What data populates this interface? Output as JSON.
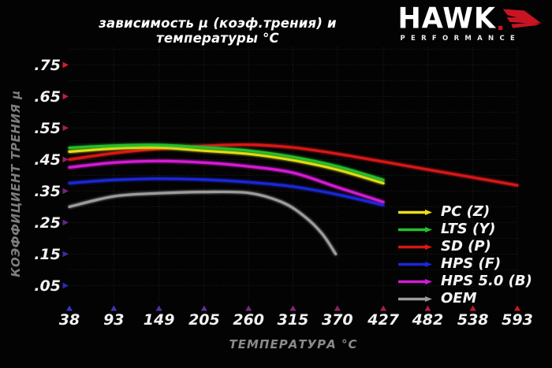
{
  "header": {
    "title": "зависимость μ (коэф.трения) и температуры °C",
    "logo": {
      "brand": "HAWK",
      "performance": "PERFORMANCE",
      "brand_color": "#ffffff",
      "wing_color": "#c81423"
    }
  },
  "chart_data": {
    "type": "line",
    "title": "зависимость μ (коэф.трения) и температуры °C",
    "xlabel": "ТЕМПЕРАТУРА °C",
    "ylabel": "КОЭФФИЦИЕНТ ТРЕНИЯ μ",
    "x_ticks": [
      38,
      93,
      149,
      205,
      260,
      315,
      370,
      427,
      482,
      538,
      593
    ],
    "y_ticks": [
      0.75,
      0.65,
      0.55,
      0.45,
      0.35,
      0.25,
      0.15,
      0.05
    ],
    "y_tick_labels": [
      ".75",
      ".65",
      ".55",
      ".45",
      ".35",
      ".25",
      ".15",
      ".05"
    ],
    "xlim": [
      38,
      593
    ],
    "ylim": [
      0,
      0.8
    ],
    "grid": "dotted",
    "grid_color": "#212121",
    "background_color": "#030303",
    "tick_label_color": "#f2f2f2",
    "axis_title_color": "#8a8a8a",
    "legend_position": "lower right",
    "axis_gradient_y": [
      "#d01818",
      "#c21840",
      "#7a2a9a",
      "#3838c4"
    ],
    "axis_gradient_x": [
      "#3838c4",
      "#6a2ea8",
      "#a32060",
      "#c81420"
    ],
    "tick_arrow_gradient_y": [
      "#e01830",
      "#2a2ab8"
    ],
    "tick_arrow_gradient_x": [
      "#3535cc",
      "#d41420"
    ],
    "series": [
      {
        "name": "PC (Z)",
        "color": "#ecdf13",
        "x": [
          38,
          93,
          149,
          205,
          260,
          315,
          370,
          427
        ],
        "values": [
          0.475,
          0.485,
          0.488,
          0.478,
          0.468,
          0.448,
          0.418,
          0.375
        ]
      },
      {
        "name": "LTS (Y)",
        "color": "#25bf2c",
        "x": [
          38,
          93,
          149,
          205,
          260,
          315,
          370,
          427
        ],
        "values": [
          0.487,
          0.494,
          0.496,
          0.488,
          0.478,
          0.458,
          0.428,
          0.385
        ]
      },
      {
        "name": "SD (P)",
        "color": "#d81717",
        "x": [
          38,
          93,
          149,
          205,
          260,
          315,
          370,
          427,
          482,
          538,
          593
        ],
        "values": [
          0.45,
          0.47,
          0.484,
          0.493,
          0.497,
          0.488,
          0.468,
          0.443,
          0.418,
          0.393,
          0.368
        ]
      },
      {
        "name": "HPS (F)",
        "color": "#1b27d8",
        "x": [
          38,
          93,
          149,
          205,
          260,
          315,
          370,
          427
        ],
        "values": [
          0.375,
          0.385,
          0.389,
          0.386,
          0.378,
          0.364,
          0.339,
          0.305
        ]
      },
      {
        "name": "HPS 5.0 (B)",
        "color": "#d31bd3",
        "x": [
          38,
          93,
          149,
          205,
          260,
          315,
          370,
          427
        ],
        "values": [
          0.425,
          0.44,
          0.445,
          0.44,
          0.428,
          0.408,
          0.362,
          0.315
        ]
      },
      {
        "name": "OEM",
        "color": "#9c9c9c",
        "x": [
          38,
          93,
          149,
          205,
          260,
          301,
          329,
          351,
          368
        ],
        "values": [
          0.3,
          0.333,
          0.343,
          0.347,
          0.344,
          0.315,
          0.27,
          0.215,
          0.15
        ]
      }
    ]
  }
}
